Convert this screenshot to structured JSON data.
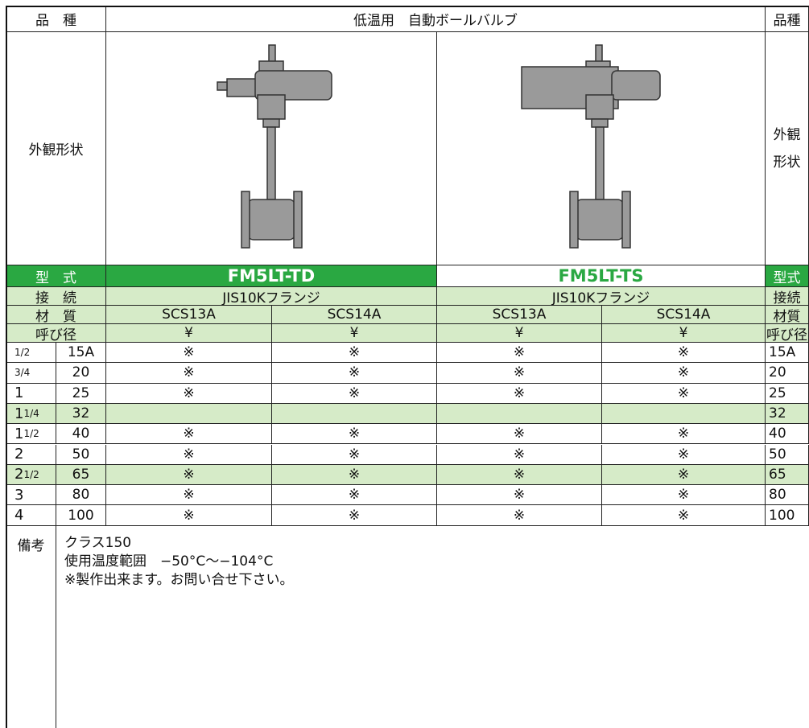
{
  "header": {
    "left": "品　種",
    "title": "低温用　自動ボールバルブ",
    "right": "品種"
  },
  "appearance": {
    "left": "外観形状",
    "right": [
      "外観",
      "形状"
    ]
  },
  "model": {
    "left": "型　式",
    "values": [
      "FM5LT-TD",
      "FM5LT-TS"
    ],
    "right": "型式"
  },
  "connection": {
    "left": "接　続",
    "values": [
      "JIS10Kフランジ",
      "JIS10Kフランジ"
    ],
    "right": "接続"
  },
  "material": {
    "left": "材　質",
    "values": [
      "SCS13A",
      "SCS14A",
      "SCS13A",
      "SCS14A"
    ],
    "right": "材質"
  },
  "size_header": {
    "left": "呼び径",
    "values": [
      "¥",
      "¥",
      "¥",
      "¥"
    ],
    "right": "呼び径"
  },
  "sizes": [
    {
      "frac": "1/2",
      "mm": "15A",
      "marks": [
        "※",
        "※",
        "※",
        "※"
      ]
    },
    {
      "frac": "3/4",
      "mm": "20",
      "marks": [
        "※",
        "※",
        "※",
        "※"
      ]
    },
    {
      "whole": "1",
      "mm": "25",
      "marks": [
        "※",
        "※",
        "※",
        "※"
      ]
    },
    {
      "whole": "1",
      "frac": "1/4",
      "mm": "32"
    },
    {
      "whole": "1",
      "frac": "1/2",
      "mm": "40",
      "marks": [
        "※",
        "※",
        "※",
        "※"
      ]
    },
    {
      "whole": "2",
      "mm": "50",
      "marks": [
        "※",
        "※",
        "※",
        "※"
      ]
    },
    {
      "whole": "2",
      "frac": "1/2",
      "mm": "65",
      "marks": [
        "※",
        "※",
        "※",
        "※"
      ]
    },
    {
      "whole": "3",
      "mm": "80",
      "marks": [
        "※",
        "※",
        "※",
        "※"
      ]
    },
    {
      "whole": "4",
      "mm": "100",
      "marks": [
        "※",
        "※",
        "※",
        "※"
      ]
    }
  ],
  "remarks": {
    "label": "備考",
    "lines": [
      "クラス150",
      "使用温度範囲　−50°C〜−104°C",
      "※製作出来ます。お問い合せ下さい。"
    ]
  }
}
